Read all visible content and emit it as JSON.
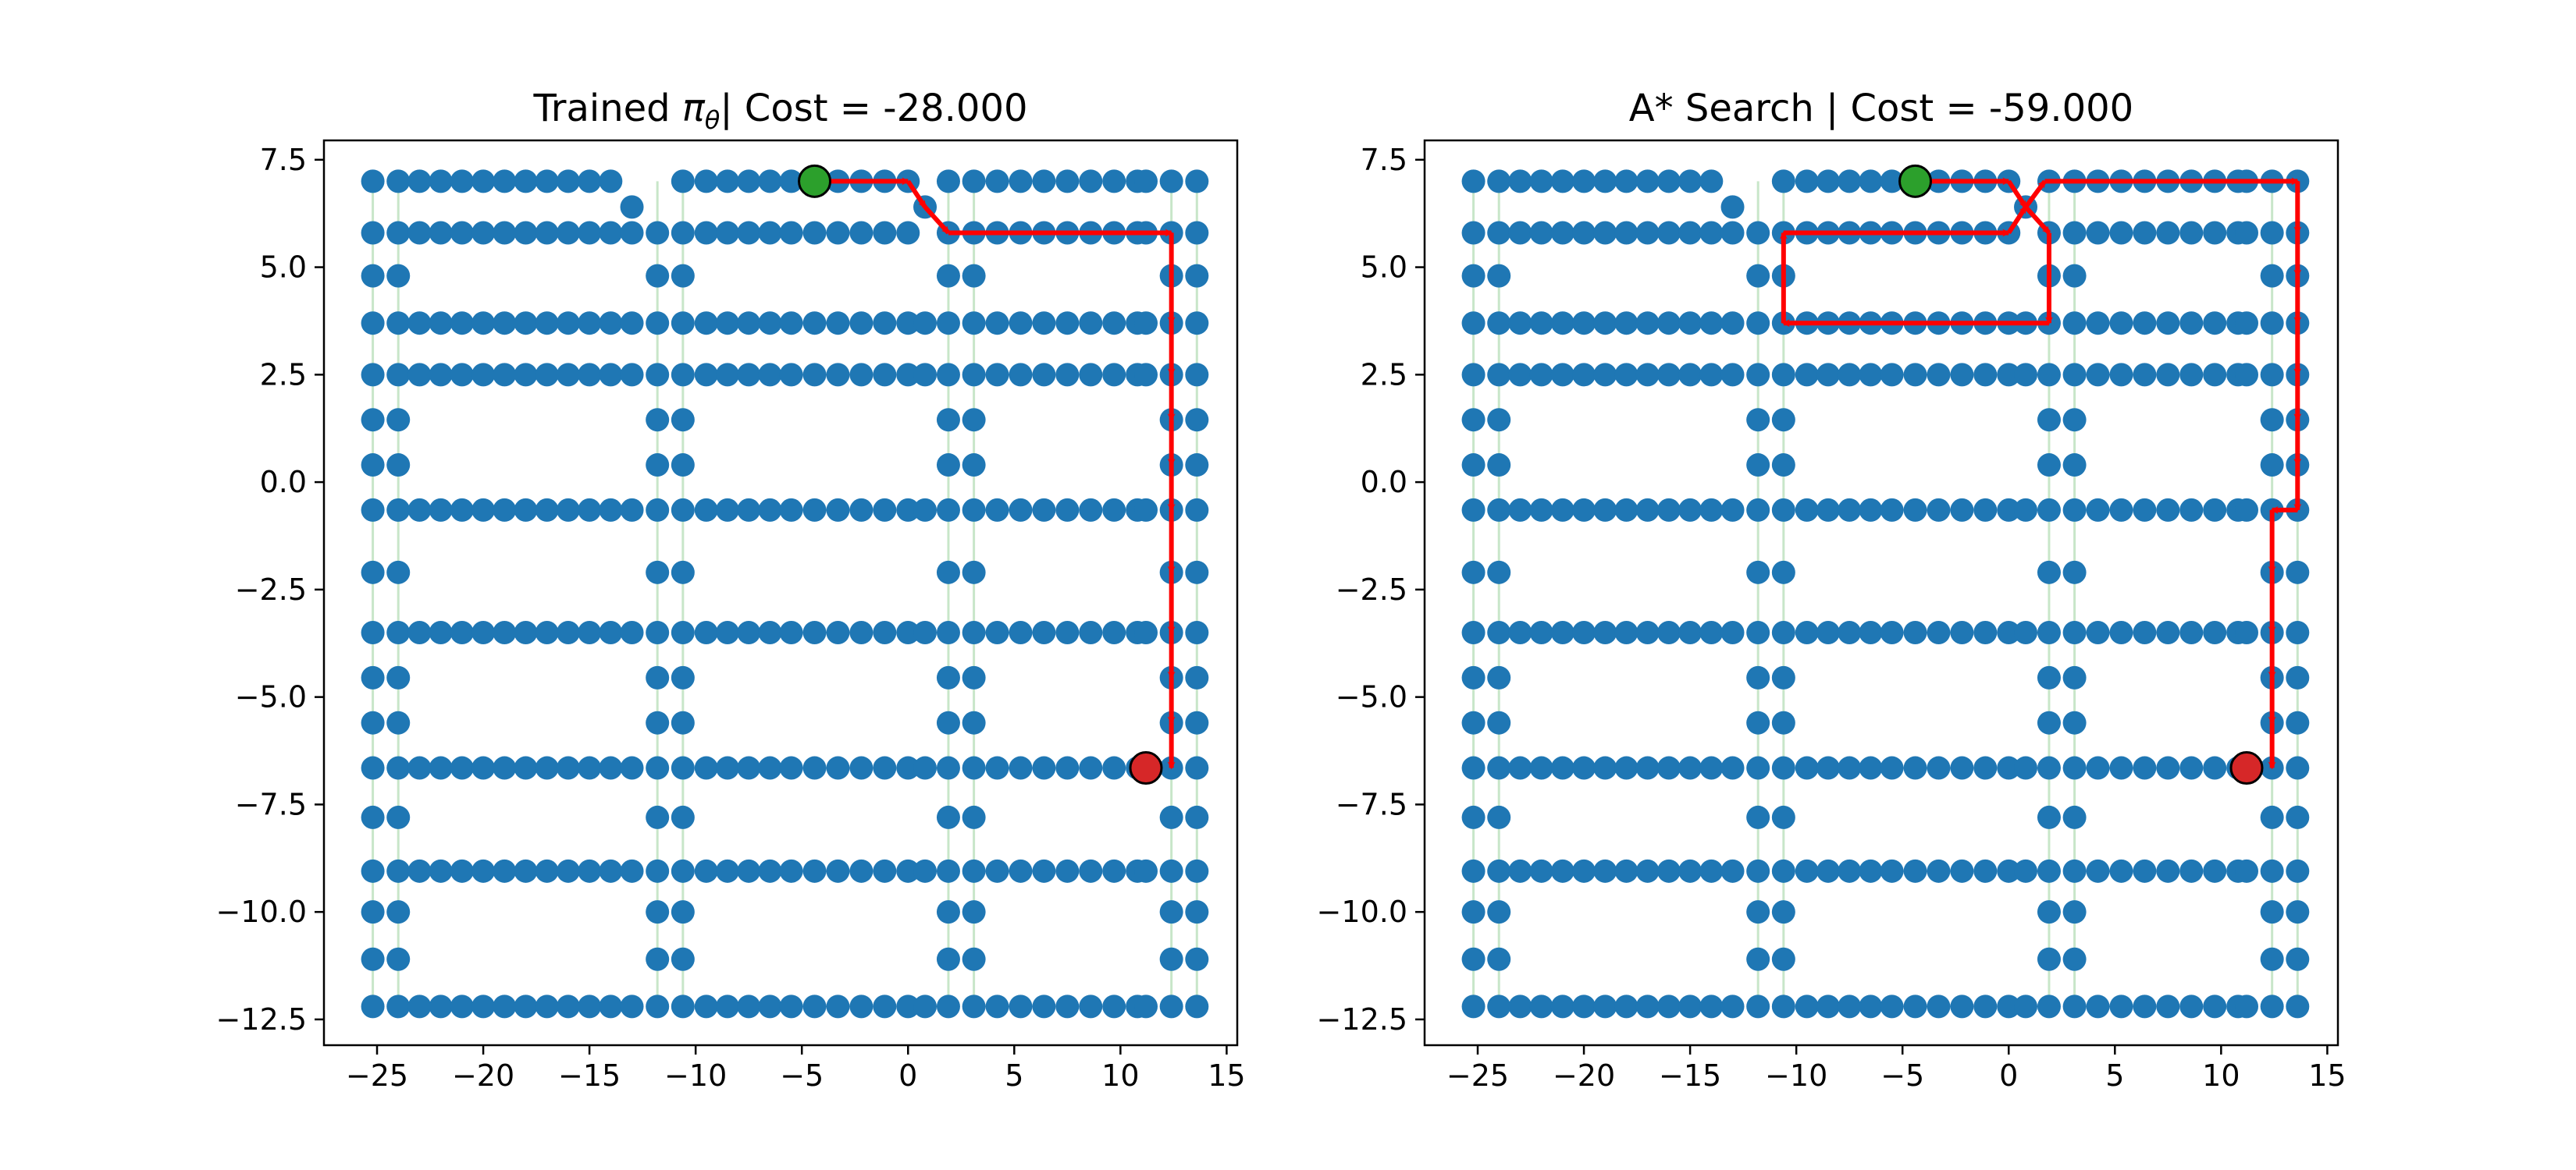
{
  "chart_data": [
    {
      "type": "scatter",
      "title": "Trained",
      "title_symbol": "π",
      "title_subscript": "θ",
      "title_suffix": "| Cost = -28.000",
      "xlim": [
        -27.5,
        15.5
      ],
      "ylim": [
        -13.1,
        7.95
      ],
      "xticks": [
        -25,
        -20,
        -15,
        -10,
        -5,
        0,
        5,
        10,
        15
      ],
      "xtick_labels": [
        "−25",
        "−20",
        "−15",
        "−10",
        "−5",
        "0",
        "5",
        "10",
        "15"
      ],
      "yticks": [
        7.5,
        5.0,
        2.5,
        0.0,
        -2.5,
        -5.0,
        -7.5,
        -10.0,
        -12.5
      ],
      "ytick_labels": [
        "7.5",
        "5.0",
        "2.5",
        "0.0",
        "−2.5",
        "−5.0",
        "−7.5",
        "−10.0",
        "−12.5"
      ],
      "grid": false,
      "node_color": "#1f77b4",
      "edge_color": "#c8e6c9",
      "path_color": "#ff0000",
      "start": {
        "x": -4.4,
        "y": 7.0,
        "color": "#2ca02c"
      },
      "goal": {
        "x": 11.2,
        "y": -6.65,
        "color": "#d62728"
      },
      "path": [
        [
          -4.4,
          7.0
        ],
        [
          0.0,
          7.0
        ],
        [
          0.8,
          6.4
        ],
        [
          1.9,
          5.8
        ],
        [
          12.4,
          5.8
        ],
        [
          12.4,
          3.7
        ],
        [
          12.4,
          2.5
        ],
        [
          12.4,
          1.45
        ],
        [
          12.4,
          0.4
        ],
        [
          12.4,
          -0.65
        ],
        [
          12.4,
          -2.1
        ],
        [
          12.4,
          -3.5
        ],
        [
          12.4,
          -4.55
        ],
        [
          12.4,
          -5.6
        ],
        [
          12.4,
          -6.65
        ]
      ]
    },
    {
      "type": "scatter",
      "title": "A* Search | Cost = -59.000",
      "xlim": [
        -27.5,
        15.5
      ],
      "ylim": [
        -13.1,
        7.95
      ],
      "xticks": [
        -25,
        -20,
        -15,
        -10,
        -5,
        0,
        5,
        10,
        15
      ],
      "xtick_labels": [
        "−25",
        "−20",
        "−15",
        "−10",
        "−5",
        "0",
        "5",
        "10",
        "15"
      ],
      "yticks": [
        7.5,
        5.0,
        2.5,
        0.0,
        -2.5,
        -5.0,
        -7.5,
        -10.0,
        -12.5
      ],
      "ytick_labels": [
        "7.5",
        "5.0",
        "2.5",
        "0.0",
        "−2.5",
        "−5.0",
        "−7.5",
        "−10.0",
        "−12.5"
      ],
      "grid": false,
      "node_color": "#1f77b4",
      "edge_color": "#c8e6c9",
      "path_color": "#ff0000",
      "start": {
        "x": -4.4,
        "y": 7.0,
        "color": "#2ca02c"
      },
      "goal": {
        "x": 11.2,
        "y": -6.65,
        "color": "#d62728"
      },
      "path": [
        [
          -4.4,
          7.0
        ],
        [
          0.0,
          7.0
        ],
        [
          0.8,
          6.4
        ],
        [
          1.9,
          5.8
        ],
        [
          1.9,
          3.7
        ],
        [
          -10.6,
          3.7
        ],
        [
          -10.6,
          5.8
        ],
        [
          0.0,
          5.8
        ],
        [
          0.8,
          6.4
        ],
        [
          1.7,
          7.0
        ],
        [
          13.6,
          7.0
        ],
        [
          13.6,
          5.8
        ],
        [
          13.6,
          4.8
        ],
        [
          13.6,
          3.7
        ],
        [
          13.6,
          2.5
        ],
        [
          13.6,
          1.45
        ],
        [
          13.6,
          0.4
        ],
        [
          13.6,
          -0.65
        ],
        [
          12.4,
          -0.65
        ],
        [
          12.4,
          -2.1
        ],
        [
          12.4,
          -3.5
        ],
        [
          12.4,
          -4.55
        ],
        [
          12.4,
          -5.6
        ],
        [
          12.4,
          -6.65
        ]
      ]
    }
  ],
  "grid": {
    "x": [
      -25.2,
      -24.0,
      -23.0,
      -22.0,
      -21.0,
      -20.0,
      -19.0,
      -18.0,
      -17.0,
      -16.0,
      -15.0,
      -14.0,
      -13.0,
      -11.8,
      -10.6,
      -9.5,
      -8.5,
      -7.5,
      -6.5,
      -5.5,
      -4.4,
      -3.3,
      -2.2,
      -1.1,
      0.0,
      0.8,
      1.9,
      3.1,
      4.2,
      5.3,
      6.4,
      7.5,
      8.6,
      9.7,
      10.8,
      11.2,
      12.4,
      13.6
    ],
    "full_rows": [
      7.0,
      5.8,
      3.7,
      2.5,
      -0.65,
      -3.5,
      -6.65,
      -9.05,
      -12.2
    ],
    "sparse_rows": [
      4.8,
      1.45,
      0.4,
      -2.1,
      -4.55,
      -5.6,
      -7.8,
      -10.0,
      -11.1
    ],
    "corridor_x": [
      -25.2,
      -24.0,
      -11.8,
      -10.6,
      1.9,
      3.1,
      12.4,
      13.6
    ]
  }
}
